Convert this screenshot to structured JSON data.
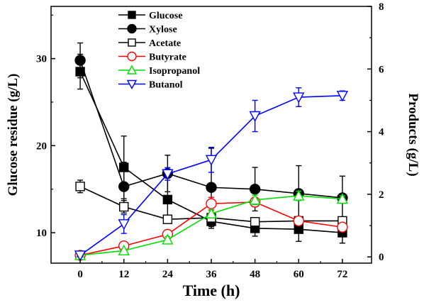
{
  "chart_data": {
    "type": "line",
    "xlabel": "Time (h)",
    "ylabel": "Glucose residue (g/L)",
    "y2label": "Products (g/L)",
    "x": [
      0,
      12,
      24,
      36,
      48,
      60,
      72
    ],
    "xlim": [
      -8,
      80
    ],
    "ylim": [
      6.5,
      36
    ],
    "y2lim": [
      -0.2,
      8
    ],
    "xticks": [
      "0",
      "12",
      "24",
      "36",
      "48",
      "60",
      "72"
    ],
    "yticks": [
      "10",
      "20",
      "30"
    ],
    "y2ticks": [
      "0",
      "2",
      "4",
      "6",
      "8"
    ],
    "legend_position": "top-center",
    "series": [
      {
        "name": "Glucose",
        "axis": "left",
        "marker": "square-filled",
        "color": "#000000",
        "values": [
          28.5,
          17.5,
          13.8,
          11.3,
          10.5,
          10.4,
          10.0
        ],
        "errors": [
          2.0,
          3.6,
          2.5,
          0.8,
          0.9,
          1.4,
          1.2
        ]
      },
      {
        "name": "Xylose",
        "axis": "left",
        "marker": "circle-filled",
        "color": "#000000",
        "values": [
          29.8,
          15.3,
          16.8,
          15.2,
          15.0,
          14.5,
          14.0
        ],
        "errors": [
          2.0,
          2.8,
          2.1,
          4.5,
          2.5,
          3.2,
          2.5
        ]
      },
      {
        "name": "Acetate",
        "axis": "right",
        "marker": "square-open",
        "color": "#000000",
        "values": [
          2.25,
          1.6,
          1.2,
          1.25,
          1.12,
          1.15,
          1.15
        ],
        "errors": [
          0.2,
          0.2,
          0.1,
          0.15,
          0.1,
          0.1,
          0.1
        ]
      },
      {
        "name": "Butyrate",
        "axis": "right",
        "marker": "circle-open",
        "color": "#ff0000",
        "values": [
          0.05,
          0.35,
          0.72,
          1.7,
          1.75,
          1.15,
          0.95
        ],
        "errors": [
          0.05,
          0.1,
          0.1,
          0.2,
          0.15,
          0.1,
          0.1
        ]
      },
      {
        "name": "Isopropanol",
        "axis": "right",
        "marker": "triangle-up-open",
        "color": "#00dd00",
        "values": [
          0.05,
          0.2,
          0.55,
          1.38,
          1.82,
          1.95,
          1.85
        ],
        "errors": [
          0.05,
          0.05,
          0.1,
          0.1,
          0.15,
          0.15,
          0.1
        ]
      },
      {
        "name": "Butanol",
        "axis": "right",
        "marker": "triangle-down-open",
        "color": "#0000ff",
        "values": [
          0.05,
          1.05,
          2.65,
          3.1,
          4.5,
          5.1,
          5.15
        ],
        "errors": [
          0.05,
          0.3,
          0.2,
          0.4,
          0.5,
          0.3,
          0.15
        ]
      }
    ]
  }
}
